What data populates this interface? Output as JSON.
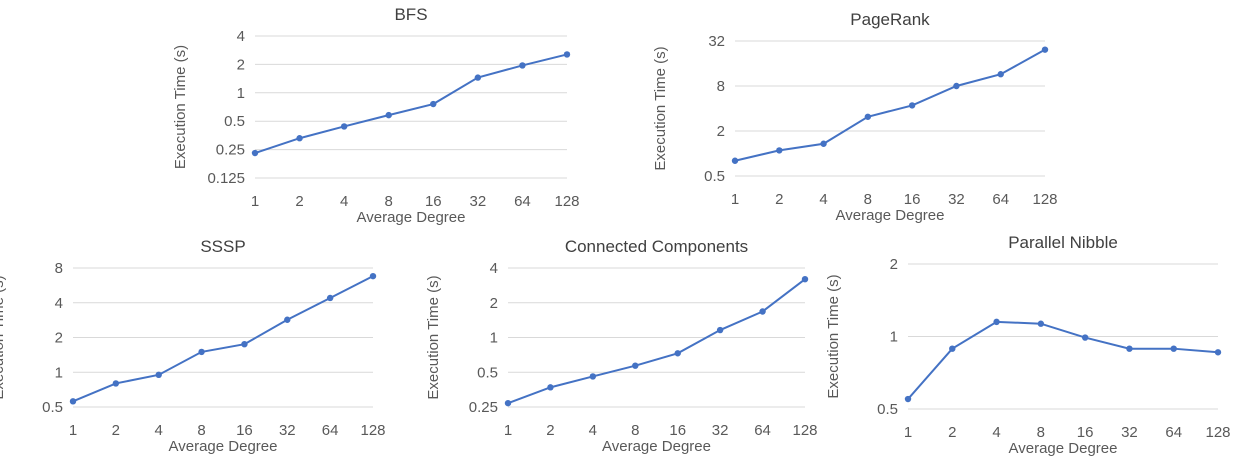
{
  "chart_data": [
    {
      "type": "line",
      "title": "BFS",
      "xlabel": "Average Degree",
      "ylabel": "Execution Time (s)",
      "y_scale": "log2",
      "categories": [
        "1",
        "2",
        "4",
        "8",
        "16",
        "32",
        "64",
        "128"
      ],
      "y_ticks": [
        "0.125",
        "0.25",
        "0.5",
        "1",
        "2",
        "4"
      ],
      "ylim": [
        0.125,
        4
      ],
      "grid": true,
      "series": [
        {
          "color": "#4472C4",
          "values": [
            0.23,
            0.33,
            0.44,
            0.58,
            0.76,
            1.45,
            1.95,
            2.55
          ]
        }
      ]
    },
    {
      "type": "line",
      "title": "PageRank",
      "xlabel": "Average Degree",
      "ylabel": "Execution Time (s)",
      "y_scale": "log2",
      "categories": [
        "1",
        "2",
        "4",
        "8",
        "16",
        "32",
        "64",
        "128"
      ],
      "y_ticks": [
        "0.5",
        "2",
        "8",
        "32"
      ],
      "ylim": [
        0.5,
        32
      ],
      "grid": true,
      "series": [
        {
          "color": "#4472C4",
          "values": [
            0.8,
            1.1,
            1.35,
            3.1,
            4.4,
            8.0,
            11.5,
            24.5
          ]
        }
      ]
    },
    {
      "type": "line",
      "title": "SSSP",
      "xlabel": "Average Degree",
      "ylabel": "Execution Time (s)",
      "y_scale": "log2",
      "categories": [
        "1",
        "2",
        "4",
        "8",
        "16",
        "32",
        "64",
        "128"
      ],
      "y_ticks": [
        "0.5",
        "1",
        "2",
        "4",
        "8"
      ],
      "ylim": [
        0.5,
        8
      ],
      "grid": true,
      "series": [
        {
          "color": "#4472C4",
          "values": [
            0.56,
            0.8,
            0.95,
            1.5,
            1.75,
            2.85,
            4.4,
            6.8
          ]
        }
      ]
    },
    {
      "type": "line",
      "title": "Connected Components",
      "xlabel": "Average Degree",
      "ylabel": "Execution Time (s)",
      "y_scale": "log2",
      "categories": [
        "1",
        "2",
        "4",
        "8",
        "16",
        "32",
        "64",
        "128"
      ],
      "y_ticks": [
        "0.25",
        "0.5",
        "1",
        "2",
        "4"
      ],
      "ylim": [
        0.25,
        4
      ],
      "grid": true,
      "series": [
        {
          "color": "#4472C4",
          "values": [
            0.27,
            0.37,
            0.46,
            0.57,
            0.73,
            1.16,
            1.68,
            3.2
          ]
        }
      ]
    },
    {
      "type": "line",
      "title": "Parallel Nibble",
      "xlabel": "Average Degree",
      "ylabel": "Execution Time (s)",
      "y_scale": "log2",
      "categories": [
        "1",
        "2",
        "4",
        "8",
        "16",
        "32",
        "64",
        "128"
      ],
      "y_ticks": [
        "0.5",
        "1",
        "2"
      ],
      "ylim": [
        0.5,
        2
      ],
      "grid": true,
      "series": [
        {
          "color": "#4472C4",
          "values": [
            0.55,
            0.89,
            1.15,
            1.13,
            0.99,
            0.89,
            0.89,
            0.86
          ]
        }
      ]
    }
  ]
}
